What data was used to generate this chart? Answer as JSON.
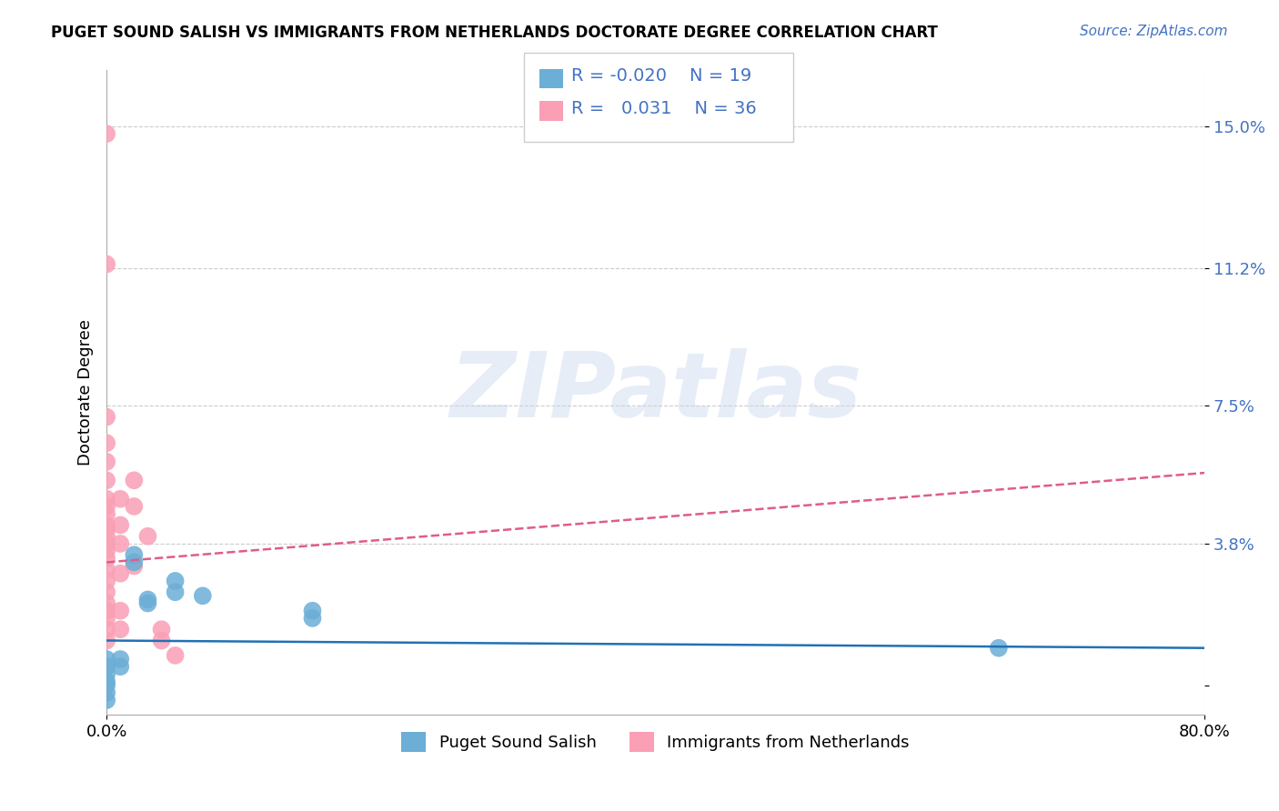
{
  "title": "PUGET SOUND SALISH VS IMMIGRANTS FROM NETHERLANDS DOCTORATE DEGREE CORRELATION CHART",
  "source": "Source: ZipAtlas.com",
  "ylabel": "Doctorate Degree",
  "y_tick_vals": [
    0.0,
    0.038,
    0.075,
    0.112,
    0.15
  ],
  "y_tick_labels": [
    "",
    "3.8%",
    "7.5%",
    "11.2%",
    "15.0%"
  ],
  "xlim": [
    0.0,
    0.8
  ],
  "ylim": [
    -0.008,
    0.165
  ],
  "legend1_R": "-0.020",
  "legend1_N": "19",
  "legend2_R": "0.031",
  "legend2_N": "36",
  "blue_color": "#6baed6",
  "pink_color": "#fa9fb5",
  "blue_line_color": "#2171b5",
  "pink_line_color": "#e05c8a",
  "blue_dots": [
    [
      0.0,
      0.007
    ],
    [
      0.0,
      0.005
    ],
    [
      0.0,
      0.003
    ],
    [
      0.0,
      0.001
    ],
    [
      0.0,
      0.0
    ],
    [
      0.0,
      -0.002
    ],
    [
      0.0,
      -0.004
    ],
    [
      0.01,
      0.007
    ],
    [
      0.01,
      0.005
    ],
    [
      0.02,
      0.035
    ],
    [
      0.02,
      0.033
    ],
    [
      0.03,
      0.023
    ],
    [
      0.03,
      0.022
    ],
    [
      0.05,
      0.028
    ],
    [
      0.05,
      0.025
    ],
    [
      0.07,
      0.024
    ],
    [
      0.15,
      0.02
    ],
    [
      0.15,
      0.018
    ],
    [
      0.65,
      0.01
    ]
  ],
  "pink_dots": [
    [
      0.0,
      0.148
    ],
    [
      0.0,
      0.113
    ],
    [
      0.0,
      0.072
    ],
    [
      0.0,
      0.065
    ],
    [
      0.0,
      0.06
    ],
    [
      0.0,
      0.055
    ],
    [
      0.0,
      0.05
    ],
    [
      0.0,
      0.048
    ],
    [
      0.0,
      0.046
    ],
    [
      0.0,
      0.043
    ],
    [
      0.0,
      0.042
    ],
    [
      0.0,
      0.04
    ],
    [
      0.0,
      0.038
    ],
    [
      0.0,
      0.036
    ],
    [
      0.0,
      0.034
    ],
    [
      0.0,
      0.031
    ],
    [
      0.0,
      0.028
    ],
    [
      0.0,
      0.025
    ],
    [
      0.0,
      0.022
    ],
    [
      0.0,
      0.02
    ],
    [
      0.0,
      0.018
    ],
    [
      0.0,
      0.015
    ],
    [
      0.0,
      0.012
    ],
    [
      0.01,
      0.05
    ],
    [
      0.01,
      0.043
    ],
    [
      0.01,
      0.038
    ],
    [
      0.01,
      0.03
    ],
    [
      0.01,
      0.02
    ],
    [
      0.01,
      0.015
    ],
    [
      0.02,
      0.055
    ],
    [
      0.02,
      0.048
    ],
    [
      0.02,
      0.032
    ],
    [
      0.03,
      0.04
    ],
    [
      0.04,
      0.015
    ],
    [
      0.04,
      0.012
    ],
    [
      0.05,
      0.008
    ]
  ],
  "blue_regression": [
    0.0,
    0.8,
    0.012,
    0.01
  ],
  "pink_regression": [
    0.0,
    0.8,
    0.033,
    0.057
  ],
  "bottom_labels": [
    "Puget Sound Salish",
    "Immigrants from Netherlands"
  ]
}
